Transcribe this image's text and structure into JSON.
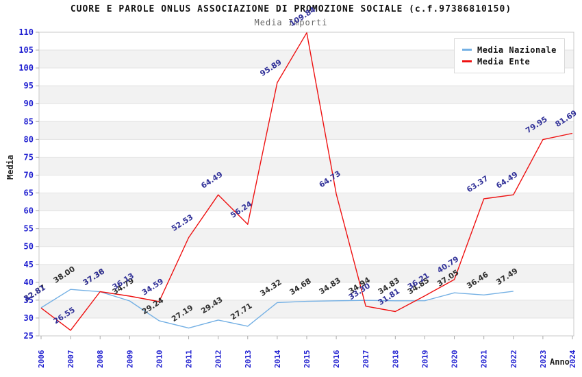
{
  "chart_data": {
    "type": "line",
    "title": "CUORE E PAROLE ONLUS ASSOCIAZIONE DI PROMOZIONE SOCIALE (c.f.97386810150)",
    "subtitle": "Media Importi",
    "xlabel": "Anno",
    "ylabel": "Media",
    "ylim": [
      25,
      110
    ],
    "ytick_step": 5,
    "grid": "horizontal gridlines with alternating gray bands",
    "legend_position": "top-right",
    "categories": [
      "2006",
      "2007",
      "2008",
      "2009",
      "2010",
      "2011",
      "2012",
      "2013",
      "2014",
      "2015",
      "2016",
      "2017",
      "2018",
      "2019",
      "2020",
      "2021",
      "2022",
      "2023",
      "2024"
    ],
    "series": [
      {
        "name": "Media Nazionale",
        "color": "#74b0e4",
        "label_color": "#303030",
        "values": [
          32.87,
          38.0,
          37.36,
          34.79,
          29.24,
          27.19,
          29.43,
          27.71,
          34.32,
          34.68,
          34.83,
          34.94,
          34.83,
          34.85,
          37.05,
          36.46,
          37.49,
          null,
          null
        ]
      },
      {
        "name": "Media Ente",
        "color": "#ee1111",
        "label_color": "#333399",
        "values": [
          32.81,
          26.55,
          37.38,
          36.13,
          34.59,
          52.53,
          64.49,
          56.24,
          95.89,
          109.84,
          64.73,
          33.3,
          31.81,
          36.21,
          40.79,
          63.37,
          64.49,
          79.95,
          81.69
        ]
      }
    ],
    "colors": {
      "tick_label_blue": "#1f1fd0",
      "band_gray": "#f2f2f2",
      "gridline": "#e3e3e3",
      "plot_border": "#c9c9c9",
      "tick_mark": "#aaaaaa"
    }
  }
}
